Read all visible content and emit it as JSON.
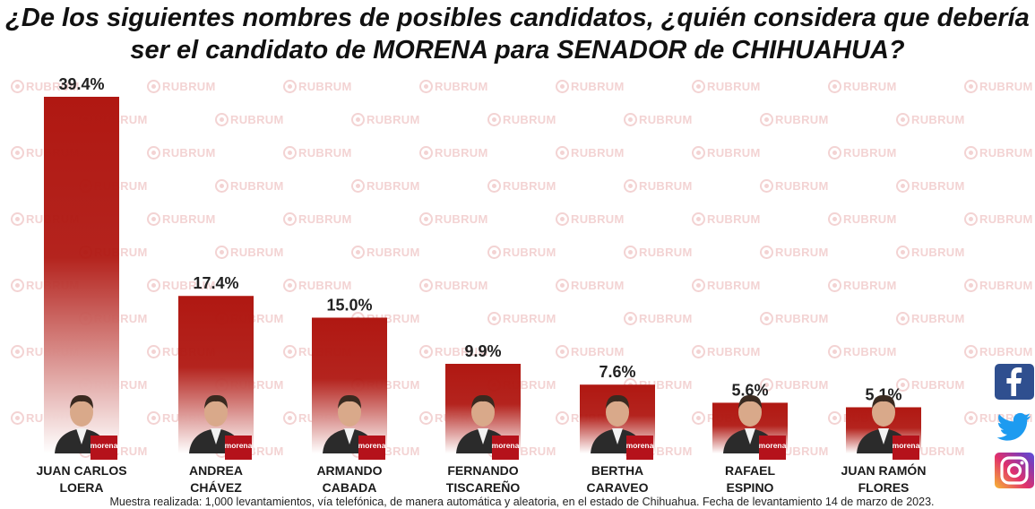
{
  "title": {
    "line1": "¿De los siguientes nombres de posibles candidatos, ¿quién considera que debería",
    "line2": "ser el candidato de MORENA para SENADOR de CHIHUAHUA?"
  },
  "watermark_text": "RUBRUM",
  "party_badge": "morena",
  "chart_data": {
    "type": "bar",
    "title": "¿De los siguientes nombres de posibles candidatos, ¿quién considera que debería ser el candidato de MORENA para SENADOR de CHIHUAHUA?",
    "categories": [
      [
        "JUAN CARLOS",
        "LOERA"
      ],
      [
        "ANDREA",
        "CHÁVEZ"
      ],
      [
        "ARMANDO",
        "CABADA"
      ],
      [
        "FERNANDO",
        "TISCAREÑO"
      ],
      [
        "BERTHA",
        "CARAVEO"
      ],
      [
        "RAFAEL",
        "ESPINO"
      ],
      [
        "JUAN RAMÓN",
        "FLORES"
      ]
    ],
    "values": [
      39.4,
      17.4,
      15.0,
      9.9,
      7.6,
      5.6,
      5.1
    ],
    "value_labels": [
      "39.4%",
      "17.4%",
      "15.0%",
      "9.9%",
      "7.6%",
      "5.6%",
      "5.1%"
    ],
    "ylim": [
      0,
      39.4
    ],
    "xlabel": "",
    "ylabel": "",
    "grid": false,
    "legend": "none",
    "colors": {
      "bar_top": "#b01812",
      "bar_bottom": "#ffffff",
      "badge": "#b5121b",
      "label": "#222222"
    }
  },
  "footnote": "Muestra realizada: 1,000 levantamientos, vía telefónica, de manera automática y aleatoria, en el estado de Chihuahua. Fecha de levantamiento 14 de marzo de 2023.",
  "social": [
    {
      "name": "facebook",
      "icon": "facebook-icon",
      "color": "#2f4f8f"
    },
    {
      "name": "twitter",
      "icon": "twitter-icon",
      "color": "#1d9bf0"
    },
    {
      "name": "instagram",
      "icon": "instagram-icon",
      "color": "#c13584"
    }
  ]
}
